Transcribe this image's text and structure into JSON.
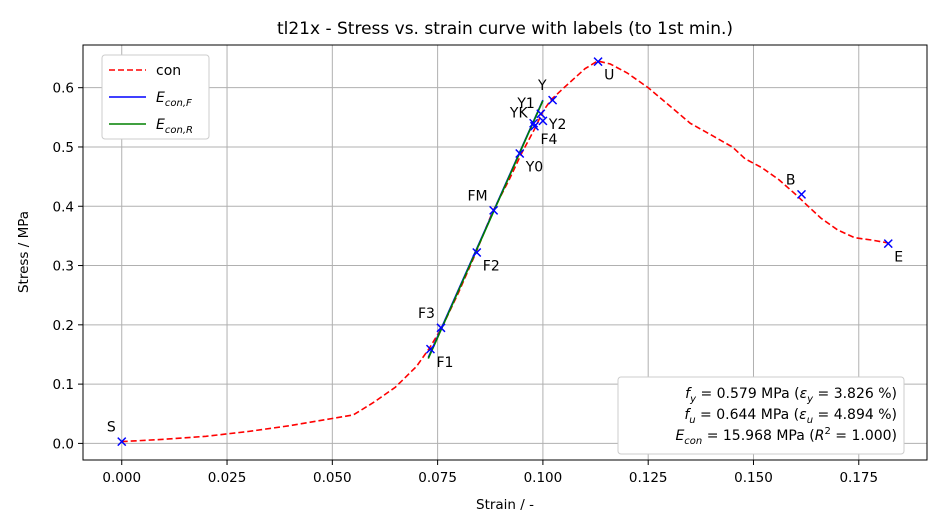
{
  "chart_data": {
    "type": "line",
    "title": "tl21x - Stress vs. strain curve with labels (to 1st min.)",
    "xlabel": "Strain / -",
    "ylabel": "Stress / MPa",
    "xlim": [
      -0.0092,
      0.1912
    ],
    "ylim": [
      -0.028,
      0.672
    ],
    "xticks": [
      0.0,
      0.025,
      0.05,
      0.075,
      0.1,
      0.125,
      0.15,
      0.175
    ],
    "xtick_labels": [
      "0.000",
      "0.025",
      "0.050",
      "0.075",
      "0.100",
      "0.125",
      "0.150",
      "0.175"
    ],
    "yticks": [
      0.0,
      0.1,
      0.2,
      0.3,
      0.4,
      0.5,
      0.6
    ],
    "ytick_labels": [
      "0.0",
      "0.1",
      "0.2",
      "0.3",
      "0.4",
      "0.5",
      "0.6"
    ],
    "grid": true,
    "legend_position": "upper-left",
    "series": [
      {
        "name": "con",
        "color": "#ff0000",
        "style": "dashed",
        "x": [
          0.0,
          0.01,
          0.02,
          0.03,
          0.04,
          0.05,
          0.055,
          0.06,
          0.065,
          0.07,
          0.073,
          0.076,
          0.08,
          0.084,
          0.088,
          0.092,
          0.095,
          0.098,
          0.1,
          0.102,
          0.105,
          0.11,
          0.113,
          0.116,
          0.12,
          0.125,
          0.13,
          0.135,
          0.14,
          0.145,
          0.148,
          0.152,
          0.156,
          0.16,
          0.163,
          0.166,
          0.17,
          0.174,
          0.178,
          0.182
        ],
        "y": [
          0.003,
          0.007,
          0.012,
          0.02,
          0.03,
          0.042,
          0.048,
          0.07,
          0.095,
          0.13,
          0.16,
          0.195,
          0.255,
          0.32,
          0.39,
          0.445,
          0.49,
          0.53,
          0.56,
          0.58,
          0.6,
          0.632,
          0.645,
          0.64,
          0.625,
          0.6,
          0.57,
          0.54,
          0.52,
          0.5,
          0.48,
          0.465,
          0.445,
          0.42,
          0.4,
          0.38,
          0.36,
          0.347,
          0.343,
          0.338
        ]
      },
      {
        "name": "E_con,F",
        "color": "#0000ff",
        "style": "solid",
        "x": [
          0.0728,
          0.1
        ],
        "y": [
          0.145,
          0.579
        ]
      },
      {
        "name": "E_con,R",
        "color": "#008000",
        "style": "solid",
        "x": [
          0.0728,
          0.1
        ],
        "y": [
          0.143,
          0.578
        ]
      }
    ],
    "legend_entries": [
      {
        "label": "con",
        "color": "#ff0000",
        "style": "dashed",
        "sub": ""
      },
      {
        "label": "E",
        "color": "#0000ff",
        "style": "solid",
        "sub": "con,F"
      },
      {
        "label": "E",
        "color": "#008000",
        "style": "solid",
        "sub": "con,R"
      }
    ],
    "marked_points": [
      {
        "label": "S",
        "x": 0.0,
        "y": 0.003,
        "anchor": "end",
        "dy": -10
      },
      {
        "label": "F1",
        "x": 0.0733,
        "y": 0.159,
        "anchor": "start",
        "dy": 18
      },
      {
        "label": "F3",
        "x": 0.0758,
        "y": 0.195,
        "anchor": "end",
        "dy": -10
      },
      {
        "label": "F2",
        "x": 0.0843,
        "y": 0.322,
        "anchor": "start",
        "dy": 18
      },
      {
        "label": "FM",
        "x": 0.0883,
        "y": 0.393,
        "anchor": "end",
        "dy": -10
      },
      {
        "label": "Y0",
        "x": 0.0945,
        "y": 0.489,
        "anchor": "start",
        "dy": 18
      },
      {
        "label": "F4",
        "x": 0.098,
        "y": 0.535,
        "anchor": "start",
        "dy": 18
      },
      {
        "label": "YK",
        "x": 0.0978,
        "y": 0.54,
        "anchor": "end",
        "dy": -6
      },
      {
        "label": "Y1",
        "x": 0.0995,
        "y": 0.556,
        "anchor": "end",
        "dy": -6
      },
      {
        "label": "Y2",
        "x": 0.1,
        "y": 0.544,
        "anchor": "start",
        "dy": 8
      },
      {
        "label": "Y",
        "x": 0.1023,
        "y": 0.579,
        "anchor": "end",
        "dy": -10
      },
      {
        "label": "U",
        "x": 0.1131,
        "y": 0.644,
        "anchor": "start",
        "dy": 18
      },
      {
        "label": "B",
        "x": 0.1614,
        "y": 0.42,
        "anchor": "end",
        "dy": -10
      },
      {
        "label": "E",
        "x": 0.182,
        "y": 0.337,
        "anchor": "start",
        "dy": 18
      }
    ],
    "stats_box": [
      {
        "sym": "f",
        "sub": "y",
        "mid": " = 0.579 MPa (",
        "sym2": "ε",
        "sub2": "y",
        "tail": " = 3.826 %)"
      },
      {
        "sym": "f",
        "sub": "u",
        "mid": " = 0.644 MPa (",
        "sym2": "ε",
        "sub2": "u",
        "tail": " = 4.894 %)"
      },
      {
        "sym": "E",
        "sub": "con",
        "mid": " =   15.968 MPa (",
        "sym2": "R",
        "sup2": "2",
        "tail": " = 1.000)"
      }
    ]
  }
}
